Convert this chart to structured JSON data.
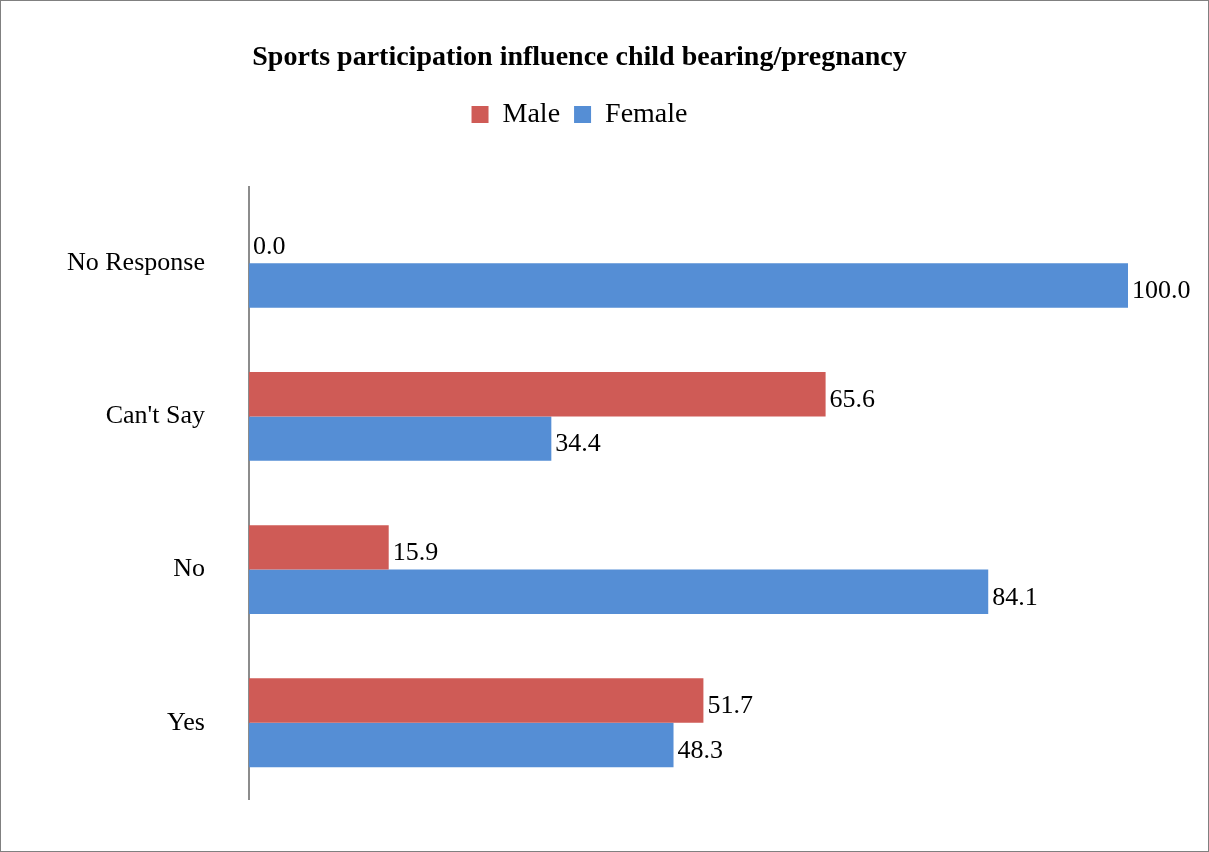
{
  "chart_data": {
    "type": "bar",
    "orientation": "horizontal",
    "title": "Sports participation influence child bearing/pregnancy",
    "categories": [
      "No Response",
      "Can't Say",
      "No",
      "Yes"
    ],
    "series": [
      {
        "name": "Male",
        "color": "#cf5b56",
        "values": [
          0.0,
          65.6,
          15.9,
          51.7
        ],
        "value_labels": [
          "0.0",
          "65.6",
          "15.9",
          "51.7"
        ]
      },
      {
        "name": "Female",
        "color": "#558ed5",
        "values": [
          100.0,
          34.4,
          84.1,
          48.3
        ],
        "value_labels": [
          "100.0",
          "34.4",
          "84.1",
          "48.3"
        ]
      }
    ],
    "xlim": [
      0,
      100
    ],
    "legend": "top",
    "tick_labels": "y"
  }
}
